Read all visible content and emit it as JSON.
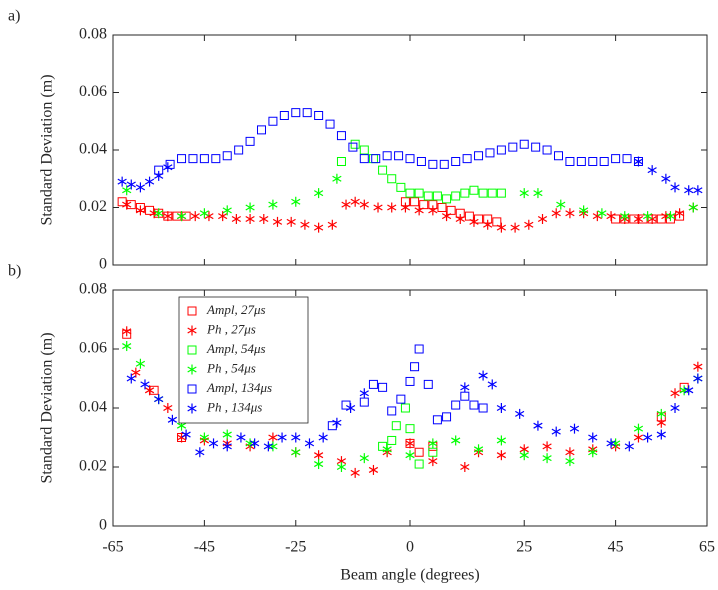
{
  "chart_data": [
    {
      "type": "scatter",
      "label": "a)",
      "ylabel": "Standard Deviation (m)",
      "xlim": [
        -65,
        65
      ],
      "ylim": [
        0,
        0.08
      ],
      "xticks": [
        -65,
        -45,
        -25,
        0,
        25,
        45,
        65
      ],
      "yticks": [
        0,
        0.02,
        0.04,
        0.06,
        0.08
      ],
      "series": [
        {
          "color": "#ff0000",
          "marker": "square",
          "x": [
            -63,
            -61,
            -59,
            -57,
            -55,
            -53,
            -51,
            -49,
            -1,
            1,
            3,
            5,
            7,
            9,
            11,
            13,
            15,
            17,
            19,
            45,
            47,
            49,
            51,
            53,
            55,
            57,
            59
          ],
          "values": [
            0.022,
            0.021,
            0.02,
            0.019,
            0.018,
            0.017,
            0.017,
            0.017,
            0.022,
            0.022,
            0.021,
            0.021,
            0.02,
            0.019,
            0.018,
            0.017,
            0.016,
            0.016,
            0.015,
            0.016,
            0.016,
            0.016,
            0.016,
            0.016,
            0.016,
            0.016,
            0.017
          ]
        },
        {
          "color": "#ff0000",
          "marker": "star",
          "x": [
            -62,
            -59,
            -56,
            -53,
            -50,
            -47,
            -44,
            -41,
            -38,
            -35,
            -32,
            -29,
            -26,
            -23,
            -20,
            -17,
            -14,
            -12,
            -10,
            -7,
            -4,
            -1,
            2,
            5,
            8,
            11,
            14,
            17,
            20,
            23,
            26,
            29,
            32,
            35,
            38,
            41,
            44,
            47,
            50,
            53,
            56,
            59,
            62
          ],
          "values": [
            0.021,
            0.019,
            0.018,
            0.017,
            0.017,
            0.017,
            0.017,
            0.017,
            0.016,
            0.016,
            0.016,
            0.015,
            0.015,
            0.014,
            0.013,
            0.014,
            0.021,
            0.022,
            0.021,
            0.02,
            0.02,
            0.02,
            0.019,
            0.019,
            0.017,
            0.016,
            0.015,
            0.014,
            0.013,
            0.013,
            0.014,
            0.016,
            0.018,
            0.018,
            0.018,
            0.017,
            0.017,
            0.016,
            0.016,
            0.016,
            0.017,
            0.018,
            0.02
          ]
        },
        {
          "color": "#00ff00",
          "marker": "square",
          "x": [
            -15,
            -12,
            -10,
            -8,
            -6,
            -4,
            -2,
            0,
            2,
            4,
            6,
            8,
            10,
            12,
            14,
            16,
            18,
            20
          ],
          "values": [
            0.036,
            0.042,
            0.04,
            0.037,
            0.033,
            0.03,
            0.027,
            0.025,
            0.025,
            0.024,
            0.024,
            0.023,
            0.024,
            0.025,
            0.026,
            0.025,
            0.025,
            0.025
          ]
        },
        {
          "color": "#00ff00",
          "marker": "star",
          "x": [
            -62,
            -55,
            -50,
            -45,
            -40,
            -35,
            -30,
            -25,
            -20,
            -16,
            25,
            28,
            33,
            38,
            42,
            47,
            52,
            57,
            62
          ],
          "values": [
            0.026,
            0.018,
            0.017,
            0.018,
            0.019,
            0.02,
            0.021,
            0.022,
            0.025,
            0.03,
            0.025,
            0.025,
            0.021,
            0.019,
            0.018,
            0.017,
            0.017,
            0.017,
            0.02
          ]
        },
        {
          "color": "#0000ff",
          "marker": "square",
          "x": [
            -55,
            -52.5,
            -50,
            -47.5,
            -45,
            -42.5,
            -40,
            -37.5,
            -35,
            -32.5,
            -30,
            -27.5,
            -25,
            -22.5,
            -20,
            -17.5,
            -15,
            -12.5,
            -10,
            -7.5,
            -5,
            -2.5,
            0,
            2.5,
            5,
            7.5,
            10,
            12.5,
            15,
            17.5,
            20,
            22.5,
            25,
            27.5,
            30,
            32.5,
            35,
            37.5,
            40,
            42.5,
            45,
            47.5,
            50
          ],
          "values": [
            0.033,
            0.035,
            0.037,
            0.037,
            0.037,
            0.037,
            0.038,
            0.04,
            0.043,
            0.047,
            0.05,
            0.052,
            0.053,
            0.053,
            0.052,
            0.049,
            0.045,
            0.041,
            0.037,
            0.037,
            0.038,
            0.038,
            0.037,
            0.036,
            0.035,
            0.035,
            0.036,
            0.037,
            0.038,
            0.039,
            0.04,
            0.041,
            0.042,
            0.041,
            0.04,
            0.038,
            0.036,
            0.036,
            0.036,
            0.036,
            0.037,
            0.037,
            0.036
          ]
        },
        {
          "color": "#0000ff",
          "marker": "star",
          "x": [
            -63,
            -61,
            -59,
            -57,
            -55,
            -53,
            50,
            53,
            56,
            58,
            61,
            63
          ],
          "values": [
            0.029,
            0.028,
            0.027,
            0.029,
            0.031,
            0.034,
            0.036,
            0.033,
            0.03,
            0.027,
            0.026,
            0.026
          ]
        }
      ]
    },
    {
      "type": "scatter",
      "label": "b)",
      "ylabel": "Standard Deviation (m)",
      "xlabel": "Beam angle (degrees)",
      "xlim": [
        -65,
        65
      ],
      "ylim": [
        0,
        0.08
      ],
      "xticks": [
        -65,
        -45,
        -25,
        0,
        25,
        45,
        65
      ],
      "yticks": [
        0,
        0.02,
        0.04,
        0.06,
        0.08
      ],
      "legend": "upper left",
      "series": [
        {
          "name": "Ampl, 27μs",
          "color": "#ff0000",
          "marker": "square",
          "x": [
            -62,
            -56,
            -50,
            0,
            2,
            5,
            55,
            60
          ],
          "values": [
            0.065,
            0.046,
            0.03,
            0.028,
            0.025,
            0.027,
            0.037,
            0.047
          ]
        },
        {
          "name": "Ph , 27μs",
          "color": "#ff0000",
          "marker": "star",
          "x": [
            -62,
            -60,
            -57,
            -53,
            -50,
            -45,
            -40,
            -35,
            -30,
            -25,
            -20,
            -15,
            -12,
            -8,
            -5,
            0,
            5,
            12,
            15,
            20,
            25,
            30,
            35,
            40,
            45,
            50,
            55,
            58,
            63
          ],
          "values": [
            0.066,
            0.052,
            0.046,
            0.04,
            0.03,
            0.029,
            0.028,
            0.027,
            0.03,
            0.025,
            0.024,
            0.022,
            0.018,
            0.019,
            0.025,
            0.028,
            0.022,
            0.02,
            0.025,
            0.024,
            0.026,
            0.027,
            0.025,
            0.026,
            0.027,
            0.03,
            0.035,
            0.045,
            0.054
          ]
        },
        {
          "name": "Ampl, 54μs",
          "color": "#00ff00",
          "marker": "square",
          "x": [
            -6,
            -4,
            -3,
            -1,
            0,
            2,
            5
          ],
          "values": [
            0.027,
            0.029,
            0.034,
            0.04,
            0.033,
            0.021,
            0.025
          ]
        },
        {
          "name": "Ph , 54μs",
          "color": "#00ff00",
          "marker": "star",
          "x": [
            -62,
            -59,
            -55,
            -50,
            -45,
            -40,
            -35,
            -30,
            -25,
            -20,
            -15,
            -10,
            -5,
            0,
            5,
            10,
            15,
            20,
            25,
            30,
            35,
            40,
            45,
            50,
            55,
            60,
            63
          ],
          "values": [
            0.061,
            0.055,
            0.043,
            0.034,
            0.03,
            0.031,
            0.028,
            0.027,
            0.025,
            0.021,
            0.02,
            0.023,
            0.026,
            0.024,
            0.028,
            0.029,
            0.026,
            0.029,
            0.024,
            0.023,
            0.022,
            0.025,
            0.028,
            0.033,
            0.038,
            0.046,
            0.05
          ]
        },
        {
          "name": "Ampl, 134μs",
          "color": "#0000ff",
          "marker": "square",
          "x": [
            -17,
            -14,
            -10,
            -8,
            -6,
            -4,
            -2,
            0,
            1,
            2,
            4,
            6,
            8,
            10,
            12,
            14,
            16
          ],
          "values": [
            0.034,
            0.041,
            0.042,
            0.048,
            0.047,
            0.039,
            0.043,
            0.049,
            0.054,
            0.06,
            0.048,
            0.036,
            0.037,
            0.041,
            0.044,
            0.041,
            0.04
          ]
        },
        {
          "name": "Ph , 134μs",
          "color": "#0000ff",
          "marker": "star",
          "x": [
            -61,
            -58,
            -55,
            -52,
            -49,
            -46,
            -43,
            -40,
            -37,
            -34,
            -31,
            -28,
            -25,
            -22,
            -19,
            -16,
            -13,
            -10,
            12,
            16,
            18,
            20,
            24,
            28,
            32,
            36,
            40,
            44,
            48,
            52,
            55,
            58,
            61,
            63
          ],
          "values": [
            0.05,
            0.048,
            0.043,
            0.036,
            0.031,
            0.025,
            0.028,
            0.027,
            0.03,
            0.028,
            0.027,
            0.03,
            0.03,
            0.028,
            0.03,
            0.035,
            0.04,
            0.045,
            0.047,
            0.051,
            0.048,
            0.04,
            0.038,
            0.034,
            0.032,
            0.033,
            0.03,
            0.028,
            0.027,
            0.03,
            0.031,
            0.04,
            0.046,
            0.05
          ]
        }
      ]
    }
  ]
}
